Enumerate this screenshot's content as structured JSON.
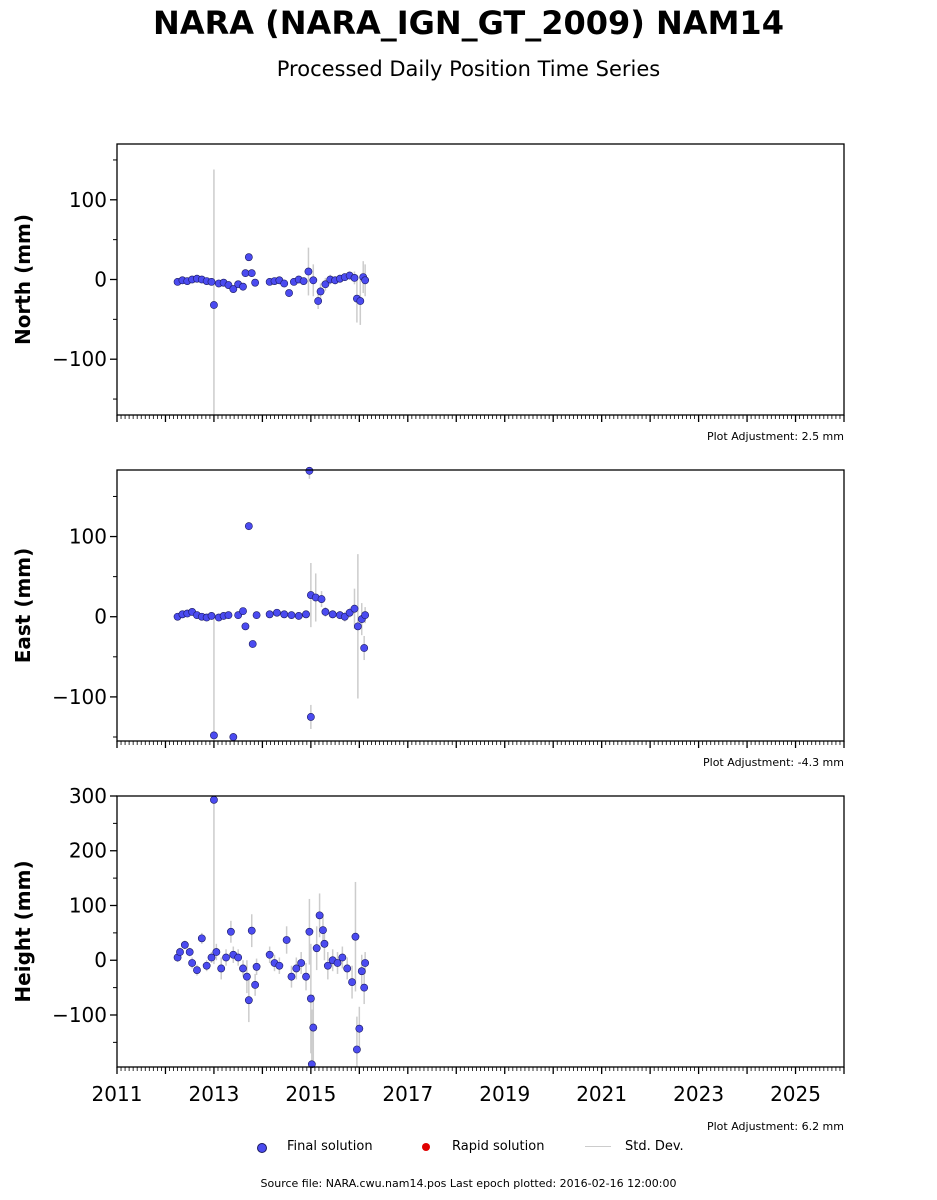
{
  "title": "NARA (NARA_IGN_GT_2009) NAM14",
  "subtitle": "Processed Daily Position Time Series",
  "legend": {
    "final": "Final solution",
    "rapid": "Rapid solution",
    "std": "Std. Dev."
  },
  "colors": {
    "final": "#4b4bf0",
    "final_edge": "#1a1a60",
    "rapid": "#e00000",
    "std": "#cccccc"
  },
  "source": "Source file: NARA.cwu.nam14.pos  Last epoch plotted: 2016-02-16 12:00:00",
  "chart_data": [
    {
      "type": "scatter",
      "ylabel": "North (mm)",
      "adjustment": "Plot Adjustment: 2.5 mm",
      "xlim": [
        2011,
        2026
      ],
      "ylim": [
        -170,
        170
      ],
      "yticks": [
        -100,
        0,
        100
      ],
      "ytick_labels": [
        "−100",
        "0",
        "100"
      ],
      "points": [
        [
          2012.25,
          -3,
          2
        ],
        [
          2012.35,
          -1,
          2
        ],
        [
          2012.45,
          -2,
          2
        ],
        [
          2012.55,
          0,
          2
        ],
        [
          2012.65,
          1,
          2
        ],
        [
          2012.75,
          0,
          2
        ],
        [
          2012.85,
          -2,
          2
        ],
        [
          2012.95,
          -3,
          2
        ],
        [
          2013.0,
          -32,
          170
        ],
        [
          2013.1,
          -5,
          3
        ],
        [
          2013.2,
          -4,
          3
        ],
        [
          2013.3,
          -7,
          4
        ],
        [
          2013.4,
          -12,
          4
        ],
        [
          2013.5,
          -6,
          3
        ],
        [
          2013.6,
          -9,
          3
        ],
        [
          2013.65,
          8,
          3
        ],
        [
          2013.72,
          28,
          3
        ],
        [
          2013.78,
          8,
          3
        ],
        [
          2013.85,
          -4,
          3
        ],
        [
          2014.15,
          -3,
          3
        ],
        [
          2014.25,
          -2,
          3
        ],
        [
          2014.35,
          -1,
          3
        ],
        [
          2014.45,
          -5,
          3
        ],
        [
          2014.55,
          -17,
          4
        ],
        [
          2014.65,
          -3,
          3
        ],
        [
          2014.75,
          0,
          3
        ],
        [
          2014.85,
          -2,
          3
        ],
        [
          2014.95,
          10,
          30
        ],
        [
          2015.05,
          -1,
          20
        ],
        [
          2015.15,
          -27,
          10
        ],
        [
          2015.2,
          -15,
          10
        ],
        [
          2015.3,
          -6,
          8
        ],
        [
          2015.4,
          0,
          6
        ],
        [
          2015.5,
          -1,
          5
        ],
        [
          2015.6,
          1,
          5
        ],
        [
          2015.7,
          3,
          5
        ],
        [
          2015.8,
          5,
          5
        ],
        [
          2015.9,
          2,
          8
        ],
        [
          2015.95,
          -24,
          30
        ],
        [
          2016.02,
          -27,
          30
        ],
        [
          2016.08,
          3,
          20
        ],
        [
          2016.12,
          -1,
          20
        ]
      ]
    },
    {
      "type": "scatter",
      "ylabel": "East (mm)",
      "adjustment": "Plot Adjustment: -4.3 mm",
      "xlim": [
        2011,
        2026
      ],
      "ylim": [
        -155,
        183
      ],
      "yticks": [
        -100,
        0,
        100
      ],
      "ytick_labels": [
        "−100",
        "0",
        "100"
      ],
      "points": [
        [
          2012.25,
          0,
          2
        ],
        [
          2012.35,
          3,
          2
        ],
        [
          2012.45,
          4,
          2
        ],
        [
          2012.55,
          6,
          2
        ],
        [
          2012.65,
          2,
          2
        ],
        [
          2012.75,
          0,
          2
        ],
        [
          2012.85,
          -1,
          2
        ],
        [
          2012.95,
          1,
          2
        ],
        [
          2013.0,
          -148,
          150
        ],
        [
          2013.1,
          -1,
          3
        ],
        [
          2013.2,
          1,
          3
        ],
        [
          2013.3,
          2,
          3
        ],
        [
          2013.4,
          -150,
          5
        ],
        [
          2013.5,
          2,
          3
        ],
        [
          2013.6,
          7,
          3
        ],
        [
          2013.65,
          -12,
          3
        ],
        [
          2013.72,
          113,
          5
        ],
        [
          2013.8,
          -34,
          3
        ],
        [
          2013.88,
          2,
          3
        ],
        [
          2014.15,
          3,
          3
        ],
        [
          2014.3,
          5,
          3
        ],
        [
          2014.45,
          3,
          3
        ],
        [
          2014.6,
          2,
          3
        ],
        [
          2014.75,
          1,
          3
        ],
        [
          2014.9,
          3,
          3
        ],
        [
          2014.97,
          182,
          10
        ],
        [
          2015.0,
          27,
          40
        ],
        [
          2015.0,
          -125,
          15
        ],
        [
          2015.1,
          24,
          30
        ],
        [
          2015.22,
          22,
          10
        ],
        [
          2015.3,
          6,
          6
        ],
        [
          2015.45,
          3,
          5
        ],
        [
          2015.6,
          2,
          5
        ],
        [
          2015.7,
          0,
          6
        ],
        [
          2015.8,
          5,
          6
        ],
        [
          2015.9,
          10,
          25
        ],
        [
          2015.97,
          -12,
          90
        ],
        [
          2016.05,
          -3,
          20
        ],
        [
          2016.1,
          -39,
          15
        ],
        [
          2016.12,
          2,
          10
        ]
      ]
    },
    {
      "type": "scatter",
      "ylabel": "Height (mm)",
      "adjustment": "Plot Adjustment: 6.2 mm",
      "xlim": [
        2011,
        2026
      ],
      "ylim": [
        -195,
        300
      ],
      "yticks": [
        -100,
        0,
        100,
        200,
        300
      ],
      "ytick_labels": [
        "−100",
        "0",
        "100",
        "200",
        "300"
      ],
      "xticks": [
        2011,
        2013,
        2015,
        2017,
        2019,
        2021,
        2023,
        2025
      ],
      "points": [
        [
          2012.25,
          5,
          8
        ],
        [
          2012.3,
          15,
          8
        ],
        [
          2012.4,
          28,
          8
        ],
        [
          2012.5,
          15,
          8
        ],
        [
          2012.55,
          -5,
          10
        ],
        [
          2012.65,
          -18,
          10
        ],
        [
          2012.75,
          40,
          10
        ],
        [
          2012.85,
          -10,
          10
        ],
        [
          2012.95,
          5,
          10
        ],
        [
          2013.0,
          293,
          300
        ],
        [
          2013.05,
          15,
          15
        ],
        [
          2013.15,
          -15,
          20
        ],
        [
          2013.25,
          5,
          15
        ],
        [
          2013.35,
          52,
          20
        ],
        [
          2013.4,
          10,
          15
        ],
        [
          2013.5,
          5,
          15
        ],
        [
          2013.6,
          -15,
          15
        ],
        [
          2013.68,
          -30,
          30
        ],
        [
          2013.72,
          -73,
          40
        ],
        [
          2013.78,
          54,
          30
        ],
        [
          2013.85,
          -45,
          20
        ],
        [
          2013.88,
          -12,
          15
        ],
        [
          2014.15,
          10,
          15
        ],
        [
          2014.25,
          -5,
          15
        ],
        [
          2014.35,
          -10,
          15
        ],
        [
          2014.5,
          37,
          25
        ],
        [
          2014.6,
          -30,
          20
        ],
        [
          2014.7,
          -15,
          20
        ],
        [
          2014.8,
          -5,
          20
        ],
        [
          2014.9,
          -30,
          25
        ],
        [
          2014.97,
          52,
          60
        ],
        [
          2015.0,
          -70,
          100
        ],
        [
          2015.02,
          -190,
          100
        ],
        [
          2015.05,
          -123,
          60
        ],
        [
          2015.12,
          22,
          40
        ],
        [
          2015.18,
          82,
          40
        ],
        [
          2015.25,
          55,
          30
        ],
        [
          2015.28,
          30,
          30
        ],
        [
          2015.35,
          -10,
          25
        ],
        [
          2015.45,
          0,
          20
        ],
        [
          2015.55,
          -5,
          20
        ],
        [
          2015.65,
          5,
          20
        ],
        [
          2015.75,
          -15,
          20
        ],
        [
          2015.85,
          -40,
          30
        ],
        [
          2015.92,
          43,
          100
        ],
        [
          2015.95,
          -163,
          60
        ],
        [
          2016.0,
          -125,
          40
        ],
        [
          2016.05,
          -20,
          30
        ],
        [
          2016.1,
          -50,
          30
        ],
        [
          2016.12,
          -5,
          20
        ]
      ]
    }
  ]
}
